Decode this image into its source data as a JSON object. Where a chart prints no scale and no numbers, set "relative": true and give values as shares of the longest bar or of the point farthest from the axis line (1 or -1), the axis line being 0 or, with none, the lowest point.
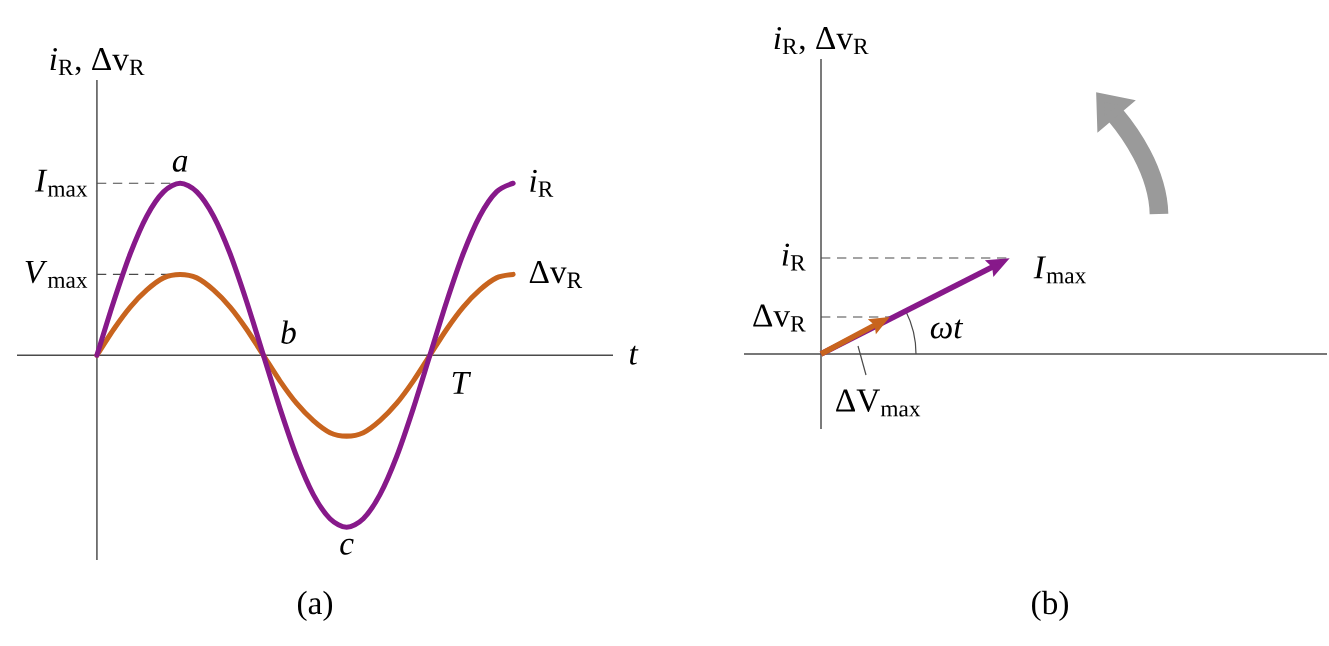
{
  "chart_data": [
    {
      "type": "line",
      "relative": true,
      "xlabel": "t",
      "ylabel": "*i*$_{R}$, Δv$_{R}$",
      "categories": [
        null,
        null,
        null,
        null,
        null,
        null,
        null,
        null,
        null,
        null,
        null,
        null,
        null,
        null,
        null,
        null,
        null,
        null,
        null,
        null,
        null,
        null,
        null,
        null,
        null,
        null
      ],
      "series": [
        {
          "name": "*i*$_{R}$",
          "color": "#87198a",
          "values": [
            0,
            0.31,
            0.59,
            0.81,
            0.95,
            1,
            0.95,
            0.81,
            0.59,
            0.31,
            0,
            -0.31,
            -0.59,
            -0.81,
            -0.95,
            -1,
            -0.95,
            -0.81,
            -0.59,
            -0.31,
            0,
            0.31,
            0.59,
            0.81,
            0.95,
            1
          ]
        },
        {
          "name": "Δv$_{R}$",
          "color": "#c8641e",
          "values": [
            0,
            0.15,
            0.28,
            0.38,
            0.45,
            0.47,
            0.45,
            0.38,
            0.28,
            0.15,
            0,
            -0.15,
            -0.28,
            -0.38,
            -0.45,
            -0.47,
            -0.45,
            -0.38,
            -0.28,
            -0.15,
            0,
            0.15,
            0.28,
            0.38,
            0.45,
            0.47
          ]
        }
      ],
      "ref_lines": [
        {
          "axis": "y",
          "value": 1,
          "label": "*I*$_{max}$",
          "line_style": "dashed"
        },
        {
          "axis": "y",
          "value": 0.47,
          "label": "*V*$_{max}$",
          "line_style": "dashed"
        }
      ],
      "annotations": [
        {
          "text": "a",
          "y": 1
        },
        "b",
        {
          "text": "c",
          "y": -1
        },
        "T",
        "(a)"
      ]
    },
    {
      "type": "other",
      "ylabel": "*i*$_{R}$, Δv$_{R}$",
      "annotations": [
        "*i*$_{R}$",
        "Δv$_{R}$",
        "*I*$_{max}$",
        "ΔV$_{max}$",
        "ωt",
        "(b)"
      ]
    }
  ]
}
